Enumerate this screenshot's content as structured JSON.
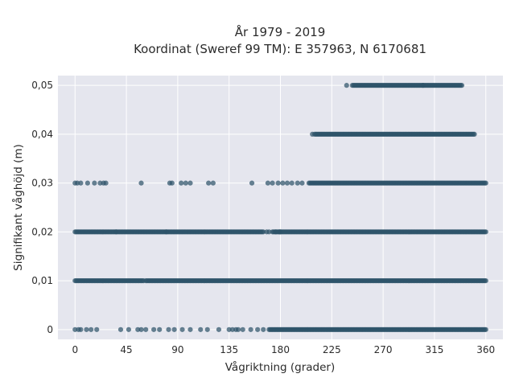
{
  "chart_data": {
    "type": "scatter",
    "title_lines": [
      "År 1979 - 2019",
      "Koordinat (Sweref 99 TM): E 357963, N 6170681"
    ],
    "xlabel": "Vågriktning (grader)",
    "ylabel": "Signifikant våghöjd (m)",
    "xlim": [
      -15,
      375
    ],
    "ylim": [
      -0.002,
      0.052
    ],
    "x_ticks": [
      0,
      45,
      90,
      135,
      180,
      225,
      270,
      315,
      360
    ],
    "x_tick_labels": [
      "0",
      "45",
      "90",
      "135",
      "180",
      "225",
      "270",
      "315",
      "360"
    ],
    "y_ticks": [
      0,
      0.01,
      0.02,
      0.03,
      0.04,
      0.05
    ],
    "y_tick_labels": [
      "0",
      "0,01",
      "0,02",
      "0,03",
      "0,04",
      "0,05"
    ],
    "grid": true,
    "point_color": "#2e5369",
    "plot_background": "#e5e6ee",
    "grid_color": "#ffffff",
    "series": [
      {
        "y": 0.05,
        "dense_ranges": [
          [
            243,
            305
          ],
          [
            305,
            339
          ]
        ],
        "sparse_x": [
          238
        ]
      },
      {
        "y": 0.04,
        "dense_ranges": [
          [
            210,
            350
          ]
        ],
        "sparse_x": [
          208
        ]
      },
      {
        "y": 0.03,
        "dense_ranges": [
          [
            205,
            360
          ]
        ],
        "sparse_x": [
          0,
          2,
          5,
          11,
          17,
          22,
          25,
          27,
          58,
          83,
          85,
          93,
          97,
          101,
          117,
          121,
          155,
          169,
          173,
          178,
          182,
          186,
          190,
          195,
          199
        ]
      },
      {
        "y": 0.02,
        "dense_ranges": [
          [
            0,
            36
          ],
          [
            36,
            80
          ],
          [
            80,
            165
          ],
          [
            173,
            178
          ],
          [
            179,
            180
          ],
          [
            179,
            360
          ]
        ],
        "sparse_x": [
          168,
          170,
          176
        ]
      },
      {
        "y": 0.01,
        "dense_ranges": [
          [
            0,
            60
          ],
          [
            62,
            360
          ]
        ],
        "sparse_x": []
      },
      {
        "y": 0,
        "dense_ranges": [
          [
            170,
            360
          ]
        ],
        "sparse_x": [
          0,
          3,
          5,
          10,
          14,
          19,
          40,
          47,
          55,
          58,
          62,
          69,
          74,
          82,
          87,
          94,
          101,
          110,
          116,
          126,
          135,
          138,
          141,
          143,
          147,
          154,
          160,
          165
        ]
      }
    ]
  }
}
